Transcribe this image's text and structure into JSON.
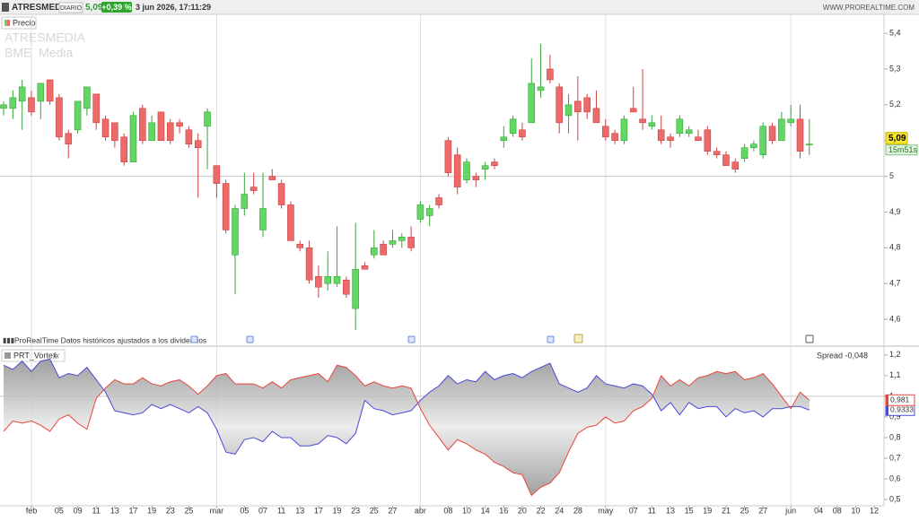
{
  "header": {
    "symbol": "ATRESMEDIA",
    "period": "DIARIO",
    "last": "5,09",
    "change": "+0,39 %",
    "datetime": "3 jun 2026, 17:11:29",
    "site": "WWW.PROREALTIME.COM"
  },
  "chart_data": [
    {
      "type": "candlestick",
      "legend": "Precio",
      "watermark": [
        "ATRESMEDIA",
        "BME  Media"
      ],
      "annotation": "ProRealTime Datos históricos ajustados a los dividendos",
      "up_color": "#63d763",
      "down_color": "#ec6a6a",
      "open": [
        5.19,
        5.19,
        5.21,
        5.22,
        5.21,
        5.27,
        5.22,
        5.12,
        5.13,
        5.19,
        5.23,
        5.16,
        5.15,
        5.11,
        5.04,
        5.19,
        5.1,
        5.18,
        5.15,
        5.15,
        5.13,
        5.1,
        5.14,
        5.03,
        4.98,
        4.78,
        4.91,
        4.97,
        4.85,
        5.0,
        4.98,
        4.92,
        4.81,
        4.8,
        4.72,
        4.7,
        4.7,
        4.71,
        4.63,
        4.75,
        4.78,
        4.81,
        4.81,
        4.82,
        4.83,
        4.88,
        4.89,
        4.94,
        5.1,
        5.06,
        4.99,
        5.0,
        5.02,
        5.04,
        5.1,
        5.12,
        5.13,
        5.15,
        5.24,
        5.3,
        5.25,
        5.17,
        5.21,
        5.22,
        5.19,
        5.14,
        5.12,
        5.1,
        5.19,
        5.16,
        5.14,
        5.13,
        5.11,
        5.12,
        5.12,
        5.11,
        5.13,
        5.07,
        5.06,
        5.04,
        5.05,
        5.08,
        5.06,
        5.14,
        5.1,
        5.15,
        5.16,
        5.09
      ],
      "high": [
        5.21,
        5.24,
        5.27,
        5.24,
        5.26,
        5.27,
        5.23,
        5.13,
        5.21,
        5.25,
        5.23,
        5.17,
        5.15,
        5.12,
        5.18,
        5.2,
        5.17,
        5.18,
        5.16,
        5.16,
        5.14,
        5.12,
        5.19,
        5.03,
        4.99,
        4.92,
        5.01,
        5.01,
        5.01,
        5.02,
        4.99,
        4.93,
        4.82,
        4.82,
        4.75,
        4.79,
        4.86,
        4.72,
        4.87,
        4.76,
        4.85,
        4.82,
        4.85,
        4.84,
        4.86,
        4.93,
        4.92,
        4.95,
        5.11,
        5.08,
        5.05,
        5.01,
        5.04,
        5.05,
        5.14,
        5.17,
        5.15,
        5.33,
        5.37,
        5.34,
        5.26,
        5.23,
        5.28,
        5.23,
        5.24,
        5.16,
        5.13,
        5.17,
        5.25,
        5.3,
        5.17,
        5.17,
        5.12,
        5.17,
        5.14,
        5.13,
        5.14,
        5.08,
        5.07,
        5.05,
        5.09,
        5.1,
        5.15,
        5.15,
        5.18,
        5.2,
        5.2,
        5.16
      ],
      "low": [
        5.17,
        5.16,
        5.13,
        5.17,
        5.16,
        5.2,
        5.1,
        5.05,
        5.12,
        5.17,
        5.13,
        5.1,
        5.08,
        5.03,
        5.04,
        5.09,
        5.1,
        5.1,
        5.09,
        5.12,
        5.08,
        4.94,
        5.02,
        4.94,
        4.84,
        4.67,
        4.89,
        4.95,
        4.83,
        4.99,
        4.91,
        4.82,
        4.79,
        4.7,
        4.66,
        4.68,
        4.69,
        4.66,
        4.57,
        4.74,
        4.77,
        4.78,
        4.8,
        4.8,
        4.79,
        4.87,
        4.86,
        4.91,
        5.0,
        4.95,
        4.98,
        4.97,
        4.99,
        5.02,
        5.08,
        5.11,
        5.1,
        5.15,
        5.22,
        5.26,
        5.12,
        5.12,
        5.1,
        5.16,
        5.15,
        5.1,
        5.09,
        5.09,
        5.18,
        5.13,
        5.13,
        5.09,
        5.08,
        5.11,
        5.11,
        5.1,
        5.06,
        5.05,
        5.03,
        5.01,
        5.04,
        5.07,
        5.05,
        5.09,
        5.1,
        5.14,
        5.05,
        5.06
      ],
      "close": [
        5.2,
        5.22,
        5.25,
        5.18,
        5.26,
        5.21,
        5.11,
        5.09,
        5.21,
        5.25,
        5.15,
        5.11,
        5.1,
        5.04,
        5.17,
        5.1,
        5.15,
        5.1,
        5.1,
        5.14,
        5.09,
        5.08,
        5.18,
        4.98,
        4.85,
        4.91,
        4.95,
        4.96,
        4.91,
        4.99,
        4.92,
        4.82,
        4.8,
        4.71,
        4.69,
        4.72,
        4.72,
        4.67,
        4.74,
        4.74,
        4.8,
        4.78,
        4.82,
        4.83,
        4.8,
        4.92,
        4.91,
        4.92,
        5.01,
        4.97,
        5.04,
        4.99,
        5.03,
        5.03,
        5.11,
        5.16,
        5.11,
        5.26,
        5.25,
        5.27,
        5.15,
        5.2,
        5.18,
        5.18,
        5.15,
        5.11,
        5.1,
        5.16,
        5.18,
        5.15,
        5.15,
        5.1,
        5.1,
        5.16,
        5.13,
        5.1,
        5.07,
        5.06,
        5.03,
        5.02,
        5.08,
        5.09,
        5.14,
        5.1,
        5.16,
        5.16,
        5.07,
        5.09
      ],
      "price_label": "5,09",
      "timer": "15m51s",
      "xlim": [
        -0.39,
        95.06
      ],
      "ylim": [
        4.525,
        5.453
      ],
      "yticks": [
        {
          "value": 5.4,
          "label": "5,4"
        },
        {
          "value": 5.3,
          "label": "5,3"
        },
        {
          "value": 5.2,
          "label": "5,2"
        },
        {
          "value": 5.1,
          "label": "5,1"
        },
        5,
        {
          "value": 4.9,
          "label": "4,9"
        },
        {
          "value": 4.8,
          "label": "4,8"
        },
        {
          "value": 4.7,
          "label": "4,7"
        },
        {
          "value": 4.6,
          "label": "4,6"
        }
      ],
      "hline": 5
    },
    {
      "type": "line",
      "title": "PRT_Vortex",
      "subtitle": "Spread -0,048",
      "series": [
        {
          "color": "#4a4ad8",
          "last_label": "0,9333",
          "values": [
            1.15,
            1.13,
            1.17,
            1.12,
            1.17,
            1.18,
            1.09,
            1.11,
            1.1,
            1.14,
            1.08,
            1.02,
            0.93,
            0.92,
            0.91,
            0.92,
            0.96,
            0.94,
            0.96,
            0.94,
            0.92,
            0.95,
            0.92,
            0.84,
            0.73,
            0.72,
            0.79,
            0.8,
            0.78,
            0.83,
            0.8,
            0.8,
            0.76,
            0.76,
            0.77,
            0.81,
            0.8,
            0.77,
            0.82,
            0.98,
            0.94,
            0.93,
            0.91,
            0.92,
            0.93,
            0.98,
            1.02,
            1.05,
            1.1,
            1.06,
            1.08,
            1.07,
            1.12,
            1.08,
            1.1,
            1.11,
            1.09,
            1.12,
            1.14,
            1.16,
            1.06,
            1.04,
            1.02,
            1.04,
            1.1,
            1.06,
            1.05,
            1.04,
            1.06,
            1.05,
            1.01,
            0.93,
            0.97,
            0.91,
            0.97,
            0.94,
            0.95,
            0.95,
            0.9,
            0.94,
            0.92,
            0.93,
            0.9,
            0.94,
            0.94,
            0.95,
            0.95,
            0.9333
          ]
        },
        {
          "color": "#e8453c",
          "last_label": "0,981",
          "values": [
            0.83,
            0.88,
            0.87,
            0.88,
            0.86,
            0.83,
            0.89,
            0.91,
            0.87,
            0.84,
            0.99,
            1.04,
            1.08,
            1.06,
            1.06,
            1.09,
            1.06,
            1.05,
            1.07,
            1.08,
            1.05,
            1.01,
            1.05,
            1.1,
            1.11,
            1.06,
            1.06,
            1.06,
            1.04,
            1.07,
            1.04,
            1.08,
            1.09,
            1.1,
            1.11,
            1.07,
            1.15,
            1.14,
            1.1,
            1.05,
            1.07,
            1.05,
            1.04,
            1.05,
            1.04,
            0.94,
            0.86,
            0.8,
            0.74,
            0.79,
            0.77,
            0.74,
            0.72,
            0.68,
            0.66,
            0.63,
            0.62,
            0.52,
            0.56,
            0.58,
            0.63,
            0.73,
            0.82,
            0.85,
            0.86,
            0.9,
            0.87,
            0.88,
            0.93,
            0.95,
            0.99,
            1.1,
            1.05,
            1.08,
            1.05,
            1.09,
            1.1,
            1.12,
            1.11,
            1.12,
            1.08,
            1.09,
            1.11,
            1.06,
            1.0,
            0.94,
            1.02,
            0.981
          ]
        }
      ],
      "xlim": [
        -0.39,
        95.06
      ],
      "ylim": [
        0.47,
        1.234
      ],
      "yticks": [
        {
          "value": 1.2,
          "label": "1,2"
        },
        {
          "value": 1.1,
          "label": "1,1"
        },
        1,
        {
          "value": 0.9,
          "label": "0,9"
        },
        {
          "value": 0.8,
          "label": "0,8"
        },
        {
          "value": 0.7,
          "label": "0,7"
        },
        {
          "value": 0.6,
          "label": "0,6"
        },
        {
          "value": 0.5,
          "label": "0,5"
        }
      ],
      "xticks": [
        {
          "value": 3,
          "label": "feb"
        },
        {
          "value": 6,
          "label": "05"
        },
        {
          "value": 8,
          "label": "09"
        },
        {
          "value": 10,
          "label": "11"
        },
        {
          "value": 12,
          "label": "13"
        },
        {
          "value": 14,
          "label": "17"
        },
        {
          "value": 16,
          "label": "19"
        },
        {
          "value": 18,
          "label": "23"
        },
        {
          "value": 20,
          "label": "25"
        },
        {
          "value": 23,
          "label": "mar"
        },
        {
          "value": 26,
          "label": "05"
        },
        {
          "value": 28,
          "label": "07"
        },
        {
          "value": 30,
          "label": "11"
        },
        {
          "value": 32,
          "label": "13"
        },
        {
          "value": 34,
          "label": "17"
        },
        {
          "value": 36,
          "label": "19"
        },
        {
          "value": 38,
          "label": "23"
        },
        {
          "value": 40,
          "label": "25"
        },
        {
          "value": 42,
          "label": "27"
        },
        {
          "value": 45,
          "label": "abr"
        },
        {
          "value": 48,
          "label": "08"
        },
        {
          "value": 50,
          "label": "10"
        },
        {
          "value": 52,
          "label": "14"
        },
        {
          "value": 54,
          "label": "16"
        },
        {
          "value": 56,
          "label": "20"
        },
        {
          "value": 58,
          "label": "22"
        },
        {
          "value": 60,
          "label": "24"
        },
        {
          "value": 62,
          "label": "28"
        },
        {
          "value": 65,
          "label": "may"
        },
        {
          "value": 68,
          "label": "07"
        },
        {
          "value": 70,
          "label": "11"
        },
        {
          "value": 72,
          "label": "13"
        },
        {
          "value": 74,
          "label": "15"
        },
        {
          "value": 76,
          "label": "19"
        },
        {
          "value": 78,
          "label": "21"
        },
        {
          "value": 80,
          "label": "25"
        },
        {
          "value": 82,
          "label": "27"
        },
        {
          "value": 85,
          "label": "jun"
        },
        {
          "value": 88,
          "label": "04"
        },
        {
          "value": 90,
          "label": "08"
        },
        {
          "value": 92,
          "label": "10"
        },
        {
          "value": 94,
          "label": "12"
        }
      ],
      "hline": 1
    }
  ]
}
